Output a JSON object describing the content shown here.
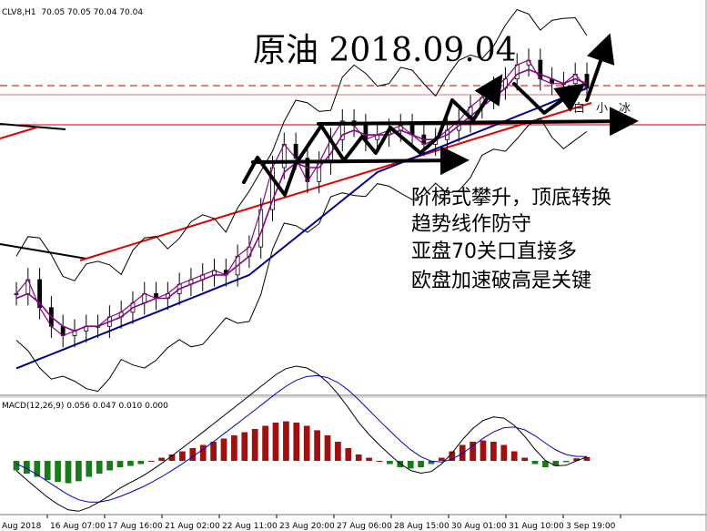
{
  "header": {
    "symbol_info": "CLV8,H1",
    "ohlc": "70.05 70.05 70.04 70.04"
  },
  "annotation": {
    "title": "原油  2018.09.04",
    "notes": [
      "阶梯式攀升，顶底转换",
      "趋势线作防守",
      "亚盘70关口直接多",
      "欧盘加速破高是关键"
    ],
    "watermark": "白小冰"
  },
  "colors": {
    "price": "#000000",
    "ma_fast": "#8B008B",
    "ma_slow": "#00008B",
    "trendline": "#e00000",
    "macd_up": "#a01010",
    "macd_down": "#1a7a1a",
    "signal": "#0000cc"
  },
  "chart_data": [
    {
      "type": "line",
      "title": "CLV8,H1",
      "x_ticks": [
        "Aug 2018",
        "16 Aug 07:00",
        "17 Aug 16:00",
        "21 Aug 02:00",
        "22 Aug 11:00",
        "23 Aug 20:00",
        "27 Aug 06:00",
        "28 Aug 15:00",
        "30 Aug 01:00",
        "31 Aug 10:00",
        "3 Sep 19:00"
      ],
      "series": [
        {
          "values": [
            65.6,
            65.9,
            65.3,
            64.9,
            64.7,
            64.8,
            64.9,
            64.9,
            65.1,
            65.2,
            65.4,
            65.6,
            65.5,
            65.6,
            65.8,
            65.9,
            66.0,
            66.1,
            66.0,
            66.4,
            66.6,
            67.4,
            68.3,
            68.8,
            68.5,
            68.0,
            68.4,
            68.9,
            69.3,
            69.2,
            68.9,
            69.0,
            69.1,
            69.2,
            69.0,
            68.8,
            68.9,
            69.1,
            69.3,
            69.6,
            69.8,
            70.0,
            70.2,
            70.5,
            70.6,
            70.2,
            70.1,
            70.1,
            70.3,
            70.0
          ]
        },
        {
          "values": [
            65.5,
            65.6,
            65.4,
            65.1,
            64.9,
            64.8,
            64.9,
            64.9,
            65.0,
            65.1,
            65.3,
            65.4,
            65.5,
            65.5,
            65.7,
            65.8,
            65.9,
            66.0,
            66.0,
            66.2,
            66.4,
            66.9,
            67.6,
            68.2,
            68.4,
            68.3,
            68.3,
            68.6,
            69.0,
            69.1,
            69.0,
            69.0,
            69.0,
            69.1,
            69.0,
            68.9,
            68.9,
            69.0,
            69.2,
            69.4,
            69.6,
            69.8,
            70.0,
            70.3,
            70.4,
            70.3,
            70.2,
            70.1,
            70.2,
            70.1
          ]
        },
        {
          "values": [
            64.0,
            64.1,
            64.2,
            64.3,
            64.4,
            64.5,
            64.6,
            64.7,
            64.8,
            64.9,
            65.0,
            65.1,
            65.2,
            65.3,
            65.4,
            65.5,
            65.6,
            65.7,
            65.8,
            65.9,
            66.0,
            66.2,
            66.4,
            66.6,
            66.8,
            67.0,
            67.2,
            67.4,
            67.6,
            67.8,
            68.0,
            68.2,
            68.3,
            68.4,
            68.5,
            68.6,
            68.7,
            68.8,
            68.9,
            69.0,
            69.1,
            69.2,
            69.3,
            69.4,
            69.5,
            69.6,
            69.7,
            69.8,
            69.9,
            70.0
          ]
        }
      ]
    },
    {
      "type": "bar",
      "title": "MACD(12,26,9) 0.056 0.047 0.010 0.000",
      "series": [
        {
          "values": [
            -0.15,
            -0.2,
            -0.25,
            -0.3,
            -0.33,
            -0.35,
            -0.32,
            -0.25,
            -0.2,
            -0.15,
            -0.1,
            -0.08,
            -0.05,
            0.0,
            0.05,
            0.1,
            0.15,
            0.2,
            0.25,
            0.3,
            0.35,
            0.4,
            0.45,
            0.5,
            0.55,
            0.6,
            0.62,
            0.6,
            0.55,
            0.48,
            0.4,
            0.3,
            0.2,
            0.1,
            0.05,
            0.0,
            -0.05,
            -0.1,
            -0.12,
            -0.1,
            -0.05,
            0.05,
            0.15,
            0.25,
            0.3,
            0.32,
            0.3,
            0.25,
            0.15,
            0.05,
            -0.05,
            -0.1,
            -0.08,
            -0.02,
            0.04,
            0.06
          ]
        }
      ]
    }
  ]
}
